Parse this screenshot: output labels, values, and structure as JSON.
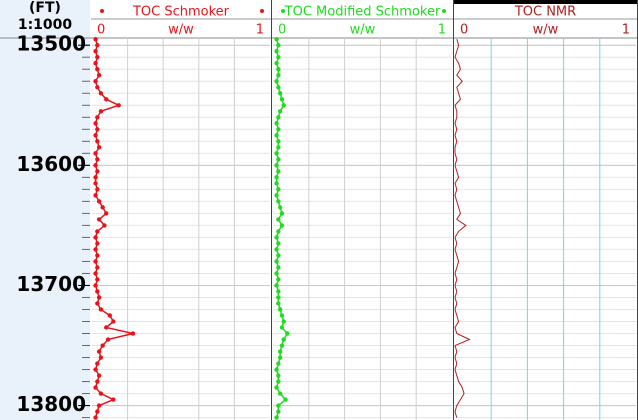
{
  "depth": {
    "title": "(FT)",
    "scale": "1:1000",
    "ylim": [
      13494,
      13812
    ],
    "yticks": [
      13500,
      13600,
      13700,
      13800
    ],
    "values": [
      13495,
      13500,
      13505,
      13510,
      13515,
      13520,
      13525,
      13530,
      13535,
      13540,
      13545,
      13550,
      13555,
      13560,
      13565,
      13570,
      13575,
      13580,
      13585,
      13590,
      13595,
      13600,
      13605,
      13610,
      13615,
      13620,
      13625,
      13630,
      13635,
      13640,
      13645,
      13650,
      13655,
      13660,
      13665,
      13670,
      13675,
      13680,
      13685,
      13690,
      13695,
      13700,
      13705,
      13710,
      13715,
      13720,
      13725,
      13730,
      13735,
      13740,
      13745,
      13750,
      13755,
      13760,
      13765,
      13770,
      13775,
      13780,
      13785,
      13790,
      13795,
      13800,
      13805,
      13810
    ]
  },
  "chart_data": [
    {
      "type": "line",
      "title": "TOC Schmoker",
      "x_label": "w/w",
      "xlim": [
        0,
        1
      ],
      "xticks": [
        0,
        1
      ],
      "minor_xticks": [
        0.2,
        0.4,
        0.6,
        0.8
      ],
      "color": "#e8141c",
      "grid_color": "#cfcfcf",
      "markers": true,
      "values": [
        0.02,
        0.03,
        0.02,
        0.03,
        0.02,
        0.03,
        0.04,
        0.02,
        0.03,
        0.05,
        0.08,
        0.15,
        0.05,
        0.03,
        0.02,
        0.03,
        0.02,
        0.03,
        0.04,
        0.02,
        0.03,
        0.02,
        0.03,
        0.02,
        0.02,
        0.03,
        0.02,
        0.04,
        0.06,
        0.08,
        0.04,
        0.07,
        0.03,
        0.02,
        0.03,
        0.02,
        0.03,
        0.02,
        0.03,
        0.02,
        0.03,
        0.02,
        0.03,
        0.04,
        0.03,
        0.05,
        0.1,
        0.12,
        0.08,
        0.23,
        0.09,
        0.06,
        0.04,
        0.05,
        0.03,
        0.02,
        0.04,
        0.03,
        0.02,
        0.05,
        0.12,
        0.04,
        0.03,
        0.02
      ]
    },
    {
      "type": "line",
      "title": "TOC Modified Schmoker",
      "x_label": "w/w",
      "xlim": [
        0,
        1
      ],
      "xticks": [
        0,
        1
      ],
      "minor_xticks": [
        0.2,
        0.4,
        0.6,
        0.8
      ],
      "color": "#1edc1e",
      "grid_color": "#cfcfcf",
      "markers": true,
      "values": [
        0.02,
        0.03,
        0.02,
        0.03,
        0.02,
        0.03,
        0.03,
        0.02,
        0.03,
        0.04,
        0.05,
        0.06,
        0.04,
        0.03,
        0.02,
        0.03,
        0.02,
        0.03,
        0.03,
        0.02,
        0.03,
        0.02,
        0.03,
        0.02,
        0.02,
        0.03,
        0.02,
        0.03,
        0.04,
        0.05,
        0.03,
        0.05,
        0.03,
        0.02,
        0.03,
        0.02,
        0.03,
        0.02,
        0.03,
        0.02,
        0.03,
        0.02,
        0.03,
        0.03,
        0.03,
        0.04,
        0.05,
        0.06,
        0.05,
        0.08,
        0.06,
        0.05,
        0.04,
        0.04,
        0.03,
        0.02,
        0.03,
        0.03,
        0.02,
        0.04,
        0.07,
        0.03,
        0.03,
        0.02
      ]
    },
    {
      "type": "line",
      "title": "TOC NMR",
      "x_label": "w/w",
      "xlim": [
        0,
        1
      ],
      "xticks": [
        0,
        1
      ],
      "minor_xticks": [
        0.2,
        0.4,
        0.6,
        0.8
      ],
      "color": "#b02020",
      "grid_color": "#6fd8e8",
      "markers": false,
      "values": [
        0.01,
        0.02,
        0.01,
        0.0,
        0.02,
        0.03,
        0.01,
        0.04,
        0.01,
        0.02,
        0.03,
        0.0,
        0.01,
        0.01,
        0.0,
        0.01,
        0.0,
        0.01,
        0.0,
        0.0,
        0.01,
        0.0,
        0.01,
        0.02,
        0.0,
        0.01,
        0.0,
        0.01,
        0.02,
        0.03,
        0.01,
        0.06,
        0.02,
        0.0,
        0.01,
        0.0,
        0.01,
        0.02,
        0.01,
        0.0,
        0.01,
        0.0,
        0.01,
        0.0,
        0.01,
        0.0,
        0.01,
        0.02,
        0.0,
        0.01,
        0.08,
        0.0,
        0.01,
        0.0,
        0.01,
        0.0,
        0.01,
        0.02,
        0.04,
        0.05,
        0.03,
        0.01,
        0.0,
        0.01
      ]
    }
  ]
}
